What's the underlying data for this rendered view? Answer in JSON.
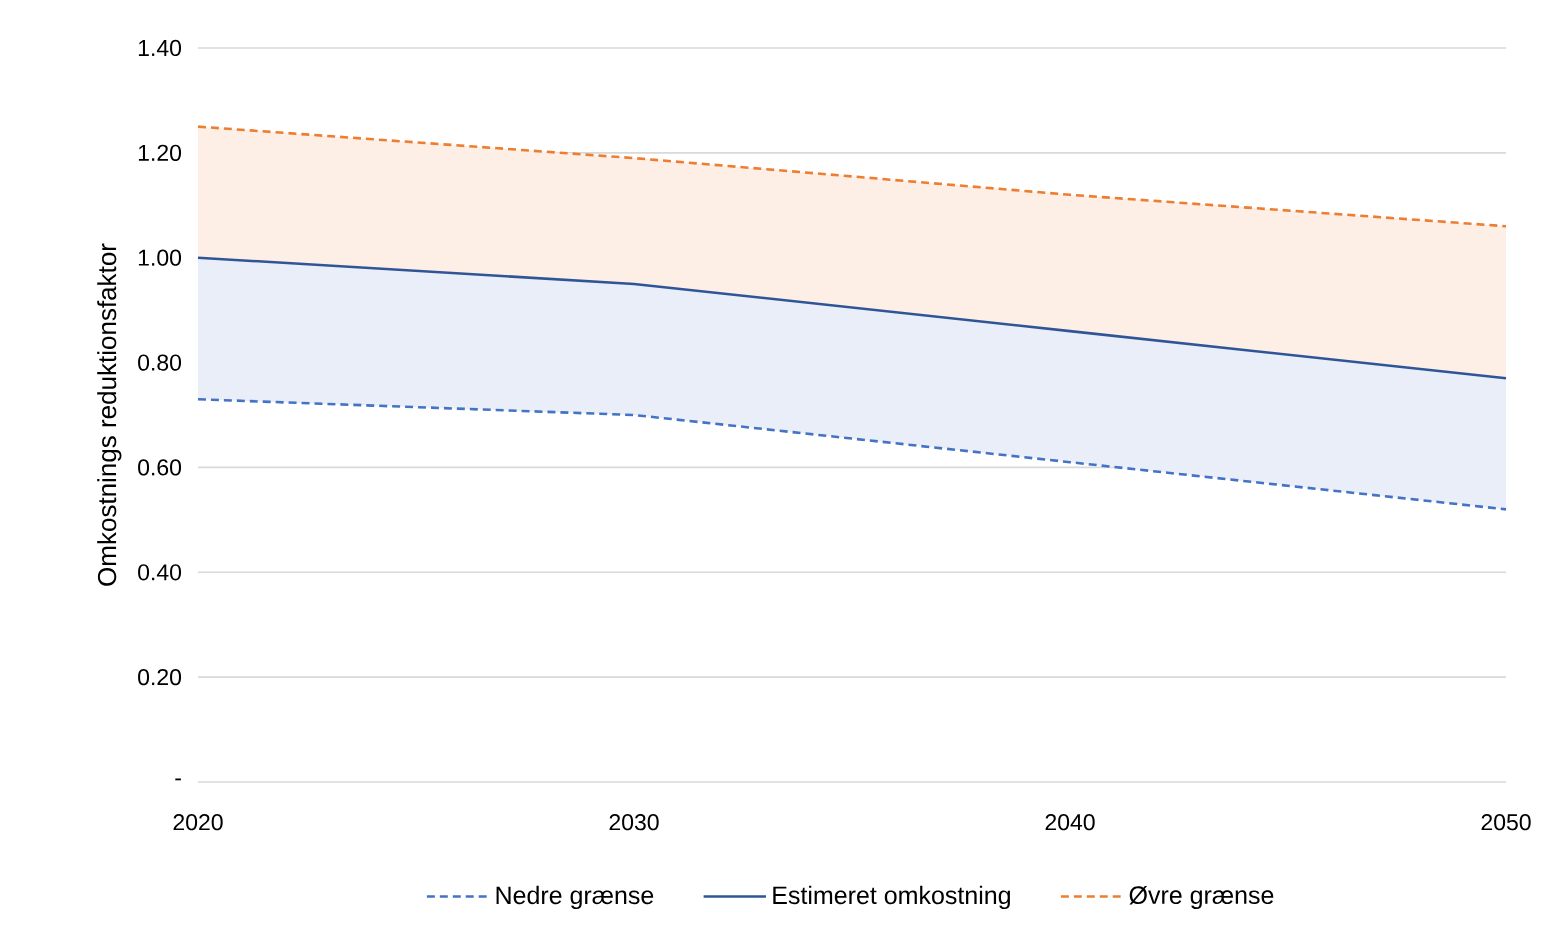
{
  "chart_data": {
    "type": "line",
    "ylabel": "Omkostnings reduktionsfaktor",
    "x": [
      2020,
      2030,
      2040,
      2050
    ],
    "series": [
      {
        "name": "Nedre grænse",
        "color": "#4472c4",
        "line_style": "dashed",
        "values": [
          0.73,
          0.7,
          0.61,
          0.52
        ],
        "lower": [
          0.73,
          0.7,
          0.61,
          0.52
        ],
        "upper": [
          1.0,
          0.95,
          0.86,
          0.77
        ]
      },
      {
        "name": "Estimeret omkostning",
        "color": "#2f5597",
        "line_style": "solid",
        "values": [
          1.0,
          0.95,
          0.86,
          0.77
        ]
      },
      {
        "name": "Øvre grænse",
        "color": "#ed7d31",
        "line_style": "dashed",
        "values": [
          1.25,
          1.19,
          1.12,
          1.06
        ],
        "lower": [
          1.0,
          0.95,
          0.86,
          0.77
        ],
        "upper": [
          1.25,
          1.19,
          1.12,
          1.06
        ]
      }
    ],
    "xlim": [
      2020,
      2050
    ],
    "xticks": [
      2020,
      2030,
      2040,
      2050
    ],
    "ylim": [
      0,
      1.4
    ],
    "yticks": [
      {
        "value": 0,
        "label": "-"
      },
      {
        "value": 0.2,
        "label": "0.20"
      },
      {
        "value": 0.4,
        "label": "0.40"
      },
      {
        "value": 0.6,
        "label": "0.60"
      },
      {
        "value": 0.8,
        "label": "0.80"
      },
      {
        "value": 1.0,
        "label": "1.00"
      },
      {
        "value": 1.2,
        "label": "1.20"
      },
      {
        "value": 1.4,
        "label": "1.40"
      }
    ],
    "grid": "y",
    "legend": "bottom",
    "marker": "none"
  }
}
